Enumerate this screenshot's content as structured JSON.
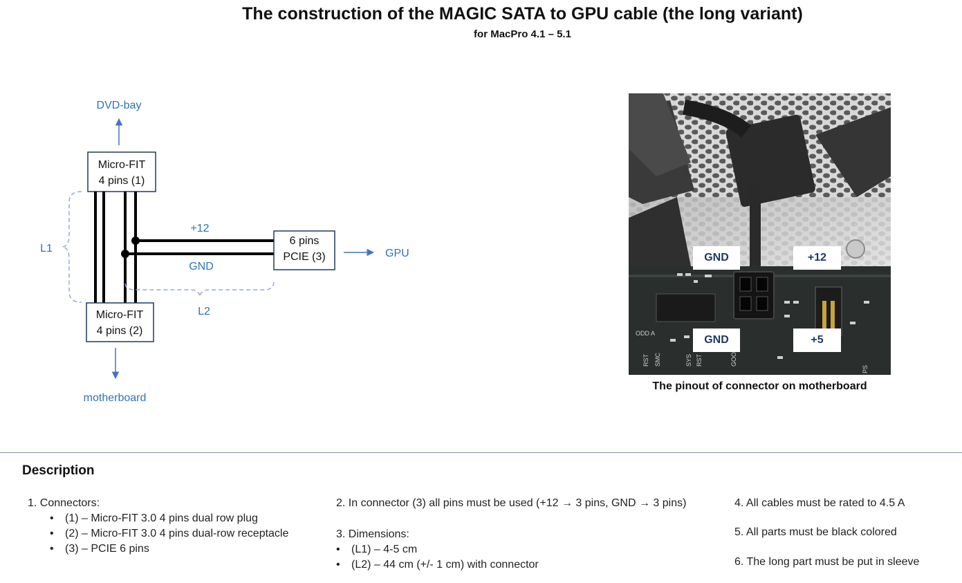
{
  "title": "The construction of the MAGIC SATA to GPU cable (the long variant)",
  "subtitle": "for MacPro 4.1 – 5.1",
  "diagram": {
    "dvd_bay": "DVD-bay",
    "motherboard": "motherboard",
    "gpu": "GPU",
    "connector1_line1": "Micro-FIT",
    "connector1_line2": "4 pins (1)",
    "connector2_line1": "Micro-FIT",
    "connector2_line2": "4 pins (2)",
    "connector3_line1": "6 pins",
    "connector3_line2": "PCIE (3)",
    "plus12": "+12",
    "gnd": "GND",
    "l1": "L1",
    "l2": "L2"
  },
  "photo": {
    "caption": "The pinout of connector on motherboard",
    "labels": {
      "gnd_top": "GND",
      "plus12": "+12",
      "gnd_bottom": "GND",
      "plus5": "+5"
    },
    "silk_text": [
      "ODD A",
      "SMC",
      "RST",
      "SYS",
      "RST",
      "GOOD",
      "PS"
    ]
  },
  "description": {
    "heading": "Description",
    "col1": {
      "item1": "1.   Connectors:",
      "bullets": [
        "(1) – Micro-FIT 3.0 4 pins dual row plug",
        "(2) – Micro-FIT 3.0 4 pins dual-row receptacle",
        "(3) – PCIE 6 pins"
      ]
    },
    "col2": {
      "item2": "2. In connector (3) all pins must be used (+12 → 3 pins, GND → 3 pins)",
      "item3": "3. Dimensions:",
      "bullets": [
        "(L1) – 4-5 cm",
        "(L2) – 44 cm (+/- 1 cm) with connector"
      ]
    },
    "col3": {
      "item4": "4. All cables must be rated to 4.5 A",
      "item5": "5. All parts must be black colored",
      "item6": "6. The long part must be put in sleeve"
    }
  },
  "bullet_char": "•"
}
